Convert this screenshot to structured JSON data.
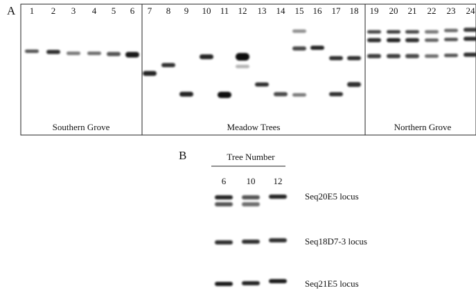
{
  "panel_a": {
    "label": "A",
    "lanes": [
      "1",
      "2",
      "3",
      "4",
      "5",
      "6",
      "7",
      "8",
      "9",
      "10",
      "11",
      "12",
      "13",
      "14",
      "15",
      "16",
      "17",
      "18",
      "19",
      "20",
      "21",
      "22",
      "23",
      "24"
    ],
    "groups": [
      "Southern Grove",
      "Meadow Trees",
      "Northern Grove"
    ]
  },
  "panel_b": {
    "label": "B",
    "header": "Tree Number",
    "lanes": [
      "6",
      "10",
      "12"
    ],
    "loci": [
      "Seq20E5 locus",
      "Seq18D7-3 locus",
      "Seq21E5 locus"
    ]
  }
}
